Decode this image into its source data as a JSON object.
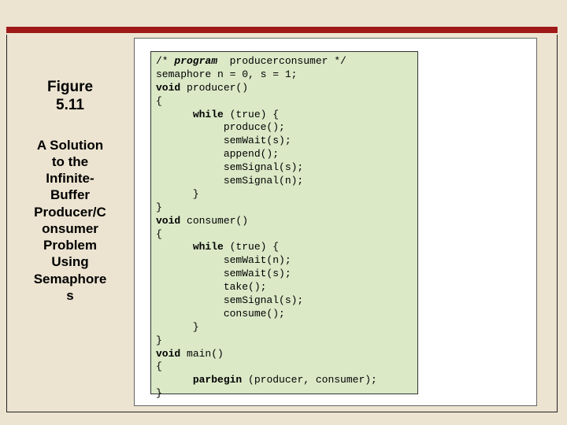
{
  "slide": {
    "background_color": "#ece4d1",
    "accent_bar_color": "#a01818",
    "code_box_bg": "#dbe9c7"
  },
  "figure": {
    "label_line1": "Figure",
    "label_line2": "5.11",
    "caption": "A Solution to the Infinite-Buffer Producer/Consumer Problem Using Semaphores"
  },
  "code": {
    "c01": "/* ",
    "c01b": "program",
    "c01c": "  producerconsumer */",
    "c02": "semaphore n = 0, s = 1;",
    "c03a": "void",
    "c03b": " producer()",
    "c04": "{",
    "c05a": "      ",
    "c05b": "while",
    "c05c": " (true) {",
    "c06": "           produce();",
    "c07": "           semWait(s);",
    "c08": "           append();",
    "c09": "           semSignal(s);",
    "c10": "           semSignal(n);",
    "c11": "      }",
    "c12": "}",
    "c13a": "void",
    "c13b": " consumer()",
    "c14": "{",
    "c15a": "      ",
    "c15b": "while",
    "c15c": " (true) {",
    "c16": "           semWait(n);",
    "c17": "           semWait(s);",
    "c18": "           take();",
    "c19": "           semSignal(s);",
    "c20": "           consume();",
    "c21": "      }",
    "c22": "}",
    "c23a": "void",
    "c23b": " main()",
    "c24": "{",
    "c25a": "      ",
    "c25b": "parbegin",
    "c25c": " (producer, consumer);",
    "c26": "}"
  }
}
